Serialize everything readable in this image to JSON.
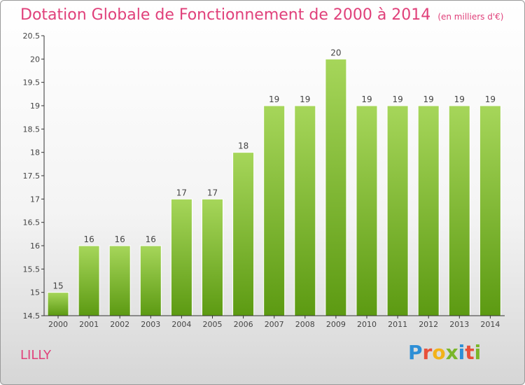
{
  "title": "Dotation Globale de Fonctionnement de 2000 à 2014",
  "subtitle": "(en milliers d'€)",
  "commune": "LILLY",
  "logo": {
    "text": "Proxiti",
    "colors": [
      "#2e8fd6",
      "#e8503a",
      "#f2b21a",
      "#7ab62a",
      "#2e8fd6",
      "#e8503a",
      "#7ab62a"
    ]
  },
  "colors": {
    "title": "#e0407a",
    "bar_top": "#a6d65a",
    "bar_bottom": "#5c9a12",
    "axis": "#333333"
  },
  "chart_data": {
    "type": "bar",
    "title": "Dotation Globale de Fonctionnement de 2000 à 2014",
    "subtitle": "(en milliers d'€)",
    "categories": [
      "2000",
      "2001",
      "2002",
      "2003",
      "2004",
      "2005",
      "2006",
      "2007",
      "2008",
      "2009",
      "2010",
      "2011",
      "2012",
      "2013",
      "2014"
    ],
    "values": [
      15,
      16,
      16,
      16,
      17,
      17,
      18,
      19,
      19,
      20,
      19,
      19,
      19,
      19,
      19
    ],
    "data_labels": [
      "15",
      "16",
      "16",
      "16",
      "17",
      "17",
      "18",
      "19",
      "19",
      "20",
      "19",
      "19",
      "19",
      "19",
      "19"
    ],
    "yticks": [
      "14.5",
      "15",
      "15.5",
      "16",
      "16.5",
      "17",
      "17.5",
      "18",
      "18.5",
      "19",
      "19.5",
      "20",
      "20.5"
    ],
    "ylim": [
      14.5,
      20.5
    ],
    "xlabel": "",
    "ylabel": "",
    "grid": false,
    "legend": "none"
  }
}
